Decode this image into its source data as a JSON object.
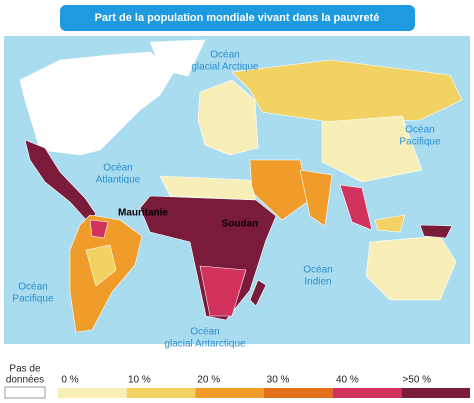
{
  "header": {
    "title": "Part de la population mondiale vivant dans la pauvreté"
  },
  "oceans": [
    {
      "lines": [
        "Océan",
        "glacial Arctique"
      ]
    },
    {
      "lines": [
        "Océan",
        "Pacifique"
      ]
    },
    {
      "lines": [
        "Océan",
        "Atlantique"
      ]
    },
    {
      "lines": [
        "Océan",
        "Pacifique"
      ]
    },
    {
      "lines": [
        "Océan",
        "Indien"
      ]
    },
    {
      "lines": [
        "Océan",
        "glacial Antarctique"
      ]
    }
  ],
  "countries": [
    {
      "label": "Mauritanie"
    },
    {
      "label": "Soudan"
    }
  ],
  "legend": {
    "no_data": {
      "lines": [
        "Pas de",
        "données"
      ],
      "color": "#ffffff"
    },
    "ticks": [
      "0 %",
      "10 %",
      "20 %",
      "30 %",
      "40 %",
      ">50 %"
    ],
    "colors": [
      "#f8eeb8",
      "#f2d262",
      "#ef9c2a",
      "#e2701a",
      "#d2335c",
      "#7a1b3c"
    ]
  }
}
